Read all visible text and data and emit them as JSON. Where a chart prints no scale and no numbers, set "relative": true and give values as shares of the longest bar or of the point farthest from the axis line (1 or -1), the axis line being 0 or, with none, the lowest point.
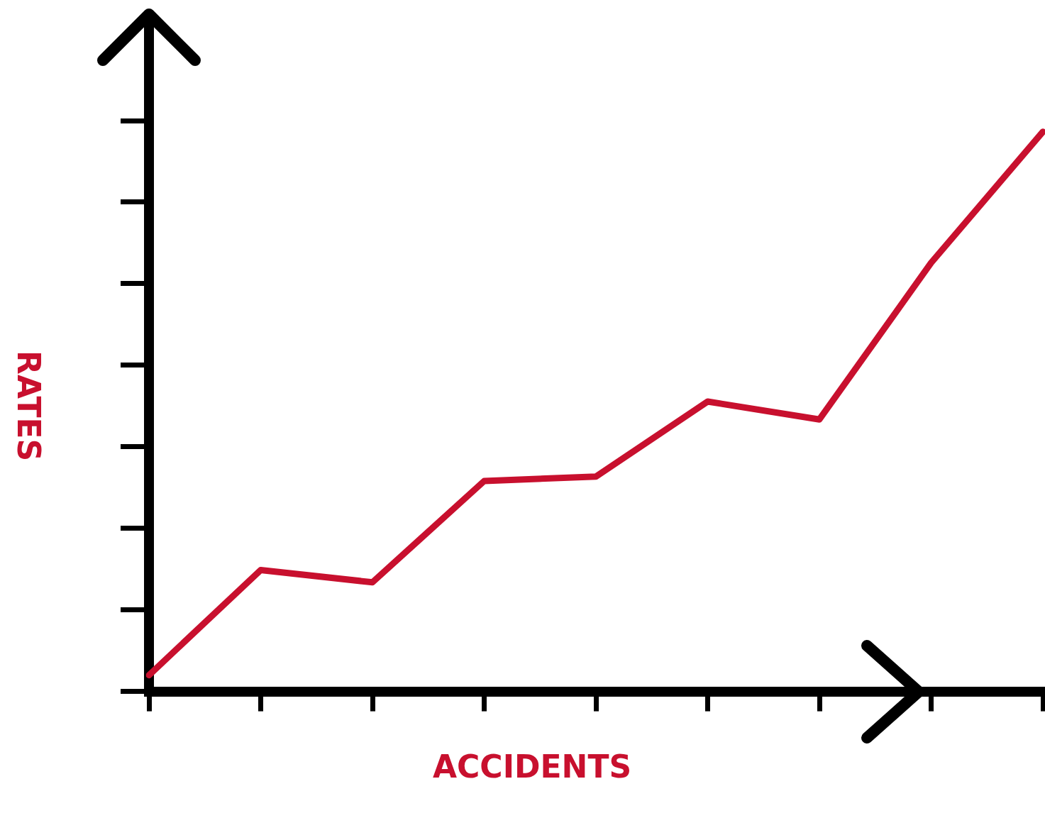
{
  "chart_data": {
    "type": "line",
    "xlabel": "ACCIDENTS",
    "ylabel": "RATES",
    "relative": true,
    "categories": [
      null,
      null,
      null,
      null,
      null,
      null,
      null,
      null,
      null
    ],
    "series": [
      {
        "color": "#c8102e",
        "values": [
          0.029,
          0.217,
          0.195,
          0.376,
          0.384,
          0.518,
          0.486,
          0.766,
          1
        ]
      }
    ],
    "marker": "none",
    "line_style": "solid",
    "grid": false,
    "legend": false
  }
}
